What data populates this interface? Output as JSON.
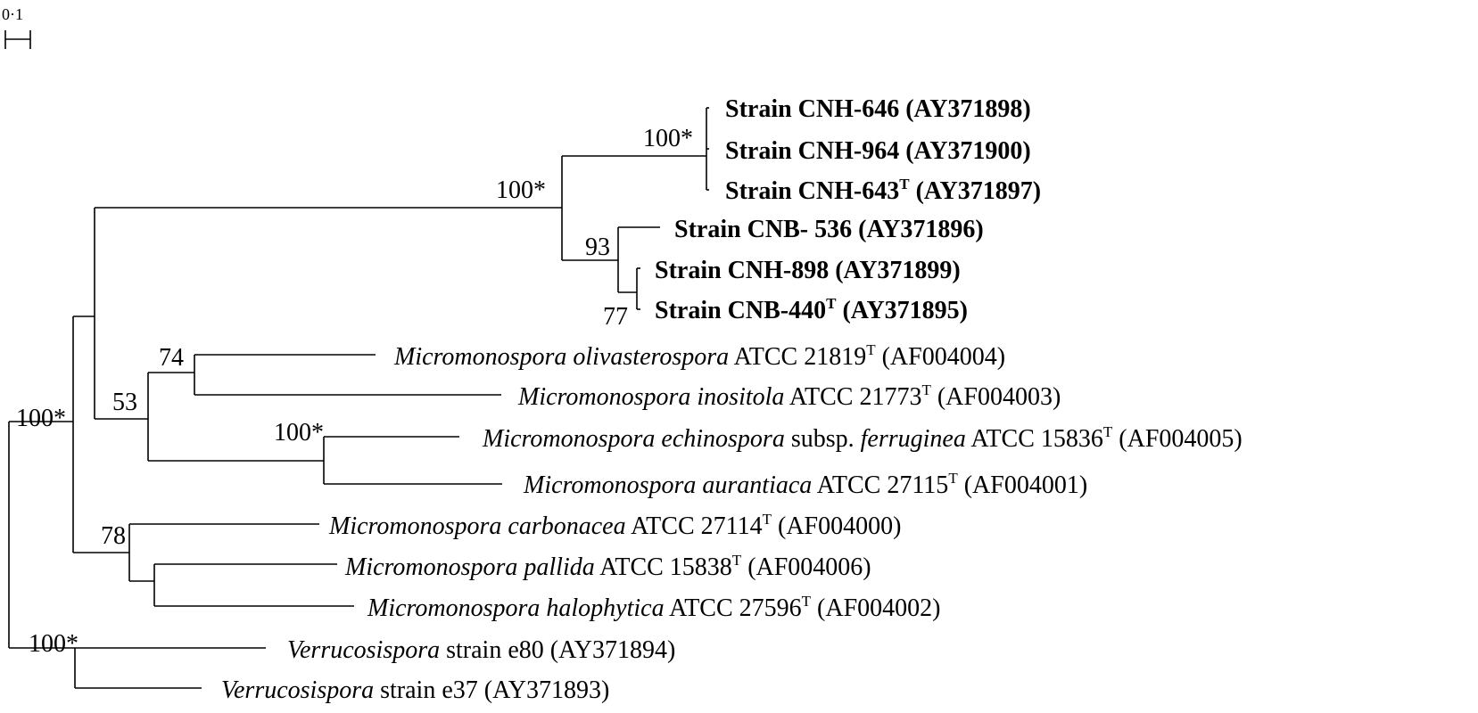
{
  "scale_bar": {
    "label": "0·1"
  },
  "bootstrap": {
    "strain_cnh_clade": "100*",
    "salinispora_clade": "100*",
    "cnb536_cluster": "93",
    "cnh898_cnb440": "77",
    "olivasterospora_inositola": "74",
    "group_53": "53",
    "echinospora_aurantiaca": "100*",
    "carbonacea_group": "78",
    "micromonospora_root": "100*",
    "verrucosispora": "100*"
  },
  "taxa": {
    "cnh646": {
      "name": "Strain CNH-646",
      "acc": "(AY371898)"
    },
    "cnh964": {
      "name": "Strain CNH-964",
      "acc": "(AY371900)"
    },
    "cnh643": {
      "name": "Strain CNH-643",
      "sup": "T",
      "acc": "(AY371897)"
    },
    "cnb536": {
      "name": "Strain CNB- 536",
      "acc": "(AY371896)"
    },
    "cnh898": {
      "name": "Strain CNH-898",
      "acc": "(AY371899)"
    },
    "cnb440": {
      "name": "Strain CNB-440",
      "sup": "T",
      "acc": "(AY371895)"
    },
    "olivasterospora": {
      "genus": "Micromonospora olivasterospora",
      "strain": "ATCC 21819",
      "sup": "T",
      "acc": "(AF004004)"
    },
    "inositola": {
      "genus": "Micromonospora inositola",
      "strain": "ATCC 21773",
      "sup": "T",
      "acc": "(AF004003)"
    },
    "echinospora": {
      "genus": "Micromonospora echinospora",
      "mid": "subsp.",
      "sub": "ferruginea",
      "strain": "ATCC 15836",
      "sup": "T",
      "acc": "(AF004005)"
    },
    "aurantiaca": {
      "genus": "Micromonospora aurantiaca",
      "strain": "ATCC 27115",
      "sup": "T",
      "acc": "(AF004001)"
    },
    "carbonacea": {
      "genus": "Micromonospora carbonacea",
      "strain": "ATCC 27114",
      "sup": "T",
      "acc": "(AF004000)"
    },
    "pallida": {
      "genus": "Micromonospora pallida",
      "strain": "ATCC 15838",
      "sup": "T",
      "acc": "(AF004006)"
    },
    "halophytica": {
      "genus": "Micromonospora halophytica",
      "strain": "ATCC 27596",
      "sup": "T",
      "acc": "(AF004002)"
    },
    "e80": {
      "genus": "Verrucosispora",
      "strain": "strain e80",
      "acc": "(AY371894)"
    },
    "e37": {
      "genus": "Verrucosispora",
      "strain": "strain e37",
      "acc": "(AY371893)"
    }
  }
}
